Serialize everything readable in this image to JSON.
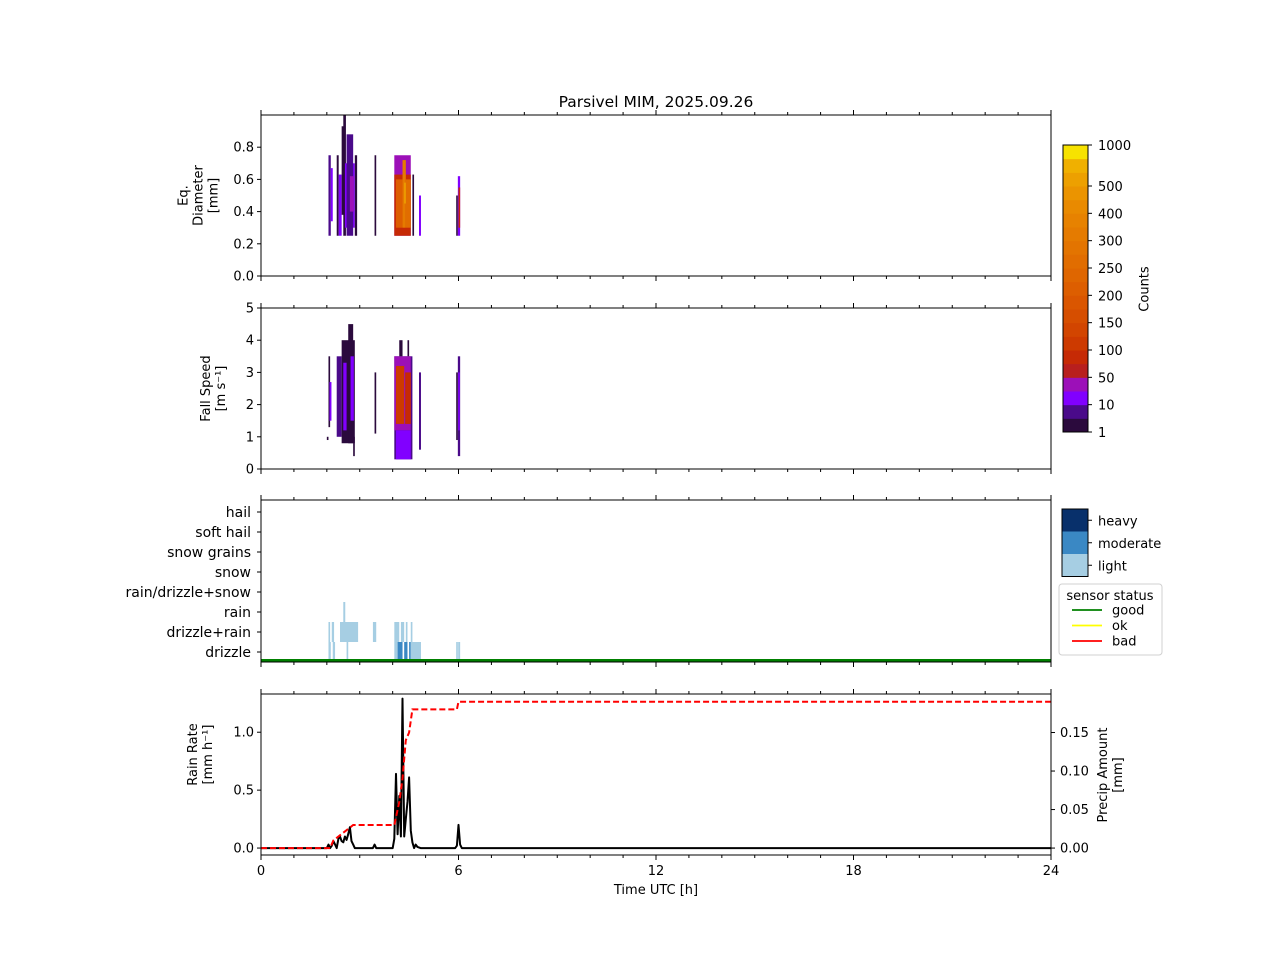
{
  "chart_data": [
    {
      "type": "heatmap",
      "title": "Parsivel MIM, 2025.09.26",
      "ylabel_lines": [
        "Eq.",
        "Diameter",
        "[mm]"
      ],
      "xlim": [
        0,
        24
      ],
      "ylim": [
        0,
        1.0
      ],
      "yticks": [
        "0.0",
        "0.2",
        "0.4",
        "0.6",
        "0.8"
      ],
      "ytick_values": [
        0,
        0.2,
        0.4,
        0.6,
        0.8
      ],
      "cells": [
        {
          "t0": 2.05,
          "t1": 2.12,
          "y0": 0.25,
          "y1": 0.75,
          "count": 5
        },
        {
          "t0": 2.12,
          "t1": 2.18,
          "y0": 0.34,
          "y1": 0.67,
          "count": 20
        },
        {
          "t0": 2.3,
          "t1": 2.36,
          "y0": 0.25,
          "y1": 0.75,
          "count": 3
        },
        {
          "t0": 2.36,
          "t1": 2.45,
          "y0": 0.25,
          "y1": 0.63,
          "count": 15
        },
        {
          "t0": 2.45,
          "t1": 2.55,
          "y0": 0.38,
          "y1": 0.93,
          "count": 3
        },
        {
          "t0": 2.5,
          "t1": 2.58,
          "y0": 0.25,
          "y1": 1.0,
          "count": 2
        },
        {
          "t0": 2.55,
          "t1": 2.85,
          "y0": 0.3,
          "y1": 0.7,
          "count": 20
        },
        {
          "t0": 2.6,
          "t1": 2.8,
          "y0": 0.25,
          "y1": 0.88,
          "count": 6
        },
        {
          "t0": 2.7,
          "t1": 2.82,
          "y0": 0.4,
          "y1": 0.62,
          "count": 40
        },
        {
          "t0": 2.85,
          "t1": 2.92,
          "y0": 0.25,
          "y1": 0.75,
          "count": 3
        },
        {
          "t0": 3.45,
          "t1": 3.5,
          "y0": 0.25,
          "y1": 0.75,
          "count": 3
        },
        {
          "t0": 4.05,
          "t1": 4.55,
          "y0": 0.25,
          "y1": 0.75,
          "count": 30
        },
        {
          "t0": 4.05,
          "t1": 4.55,
          "y0": 0.25,
          "y1": 0.63,
          "count": 80
        },
        {
          "t0": 4.1,
          "t1": 4.3,
          "y0": 0.3,
          "y1": 0.6,
          "count": 200
        },
        {
          "t0": 4.3,
          "t1": 4.4,
          "y0": 0.3,
          "y1": 0.72,
          "count": 300
        },
        {
          "t0": 4.4,
          "t1": 4.55,
          "y0": 0.3,
          "y1": 0.6,
          "count": 250
        },
        {
          "t0": 4.35,
          "t1": 4.4,
          "y0": 0.45,
          "y1": 0.58,
          "count": 600
        },
        {
          "t0": 4.6,
          "t1": 4.65,
          "y0": 0.25,
          "y1": 0.63,
          "count": 4
        },
        {
          "t0": 4.8,
          "t1": 4.86,
          "y0": 0.25,
          "y1": 0.5,
          "count": 20
        },
        {
          "t0": 5.93,
          "t1": 5.98,
          "y0": 0.25,
          "y1": 0.5,
          "count": 4
        },
        {
          "t0": 5.98,
          "t1": 6.05,
          "y0": 0.25,
          "y1": 0.62,
          "count": 20
        },
        {
          "t0": 6.0,
          "t1": 6.05,
          "y0": 0.3,
          "y1": 0.55,
          "count": 80
        }
      ]
    },
    {
      "type": "heatmap",
      "ylabel_lines": [
        "Fall Speed",
        "[m s⁻¹]"
      ],
      "xlim": [
        0,
        24
      ],
      "ylim": [
        0,
        5
      ],
      "yticks": [
        "0",
        "1",
        "2",
        "3",
        "4",
        "5"
      ],
      "ytick_values": [
        0,
        1,
        2,
        3,
        4,
        5
      ],
      "cells": [
        {
          "t0": 2.05,
          "t1": 2.1,
          "y0": 1.3,
          "y1": 3.5,
          "count": 3
        },
        {
          "t0": 2.08,
          "t1": 2.14,
          "y0": 1.5,
          "y1": 2.7,
          "count": 20
        },
        {
          "t0": 2.0,
          "t1": 2.05,
          "y0": 0.9,
          "y1": 1.0,
          "count": 3
        },
        {
          "t0": 2.3,
          "t1": 2.45,
          "y0": 1.0,
          "y1": 3.5,
          "count": 5
        },
        {
          "t0": 2.45,
          "t1": 2.85,
          "y0": 0.8,
          "y1": 4.0,
          "count": 4
        },
        {
          "t0": 2.5,
          "t1": 2.6,
          "y0": 1.2,
          "y1": 3.3,
          "count": 15
        },
        {
          "t0": 2.65,
          "t1": 2.8,
          "y0": 0.8,
          "y1": 4.5,
          "count": 3
        },
        {
          "t0": 2.72,
          "t1": 2.82,
          "y0": 1.5,
          "y1": 3.5,
          "count": 20
        },
        {
          "t0": 2.8,
          "t1": 2.85,
          "y0": 0.4,
          "y1": 1.0,
          "count": 3
        },
        {
          "t0": 3.45,
          "t1": 3.5,
          "y0": 1.1,
          "y1": 3.0,
          "count": 3
        },
        {
          "t0": 4.05,
          "t1": 4.6,
          "y0": 0.3,
          "y1": 3.5,
          "count": 8
        },
        {
          "t0": 4.05,
          "t1": 4.55,
          "y0": 1.2,
          "y1": 3.5,
          "count": 30
        },
        {
          "t0": 4.1,
          "t1": 4.35,
          "y0": 1.4,
          "y1": 3.2,
          "count": 100
        },
        {
          "t0": 4.38,
          "t1": 4.55,
          "y0": 1.4,
          "y1": 3.0,
          "count": 80
        },
        {
          "t0": 4.1,
          "t1": 4.55,
          "y0": 0.3,
          "y1": 1.2,
          "count": 15
        },
        {
          "t0": 4.2,
          "t1": 4.3,
          "y0": 3.5,
          "y1": 4.0,
          "count": 3
        },
        {
          "t0": 4.45,
          "t1": 4.5,
          "y0": 3.5,
          "y1": 4.0,
          "count": 3
        },
        {
          "t0": 4.8,
          "t1": 4.86,
          "y0": 0.6,
          "y1": 3.0,
          "count": 5
        },
        {
          "t0": 5.93,
          "t1": 5.98,
          "y0": 0.9,
          "y1": 3.0,
          "count": 3
        },
        {
          "t0": 5.98,
          "t1": 6.05,
          "y0": 0.4,
          "y1": 3.5,
          "count": 8
        },
        {
          "t0": 5.99,
          "t1": 6.04,
          "y0": 1.2,
          "y1": 3.0,
          "count": 20
        }
      ]
    },
    {
      "type": "heatmap",
      "ylim_categories": [
        "drizzle",
        "drizzle+rain",
        "rain",
        "rain/drizzle+snow",
        "snow",
        "snow grains",
        "soft hail",
        "hail"
      ],
      "xlim": [
        0,
        24
      ],
      "intensity_legend": [
        "heavy",
        "moderate",
        "light"
      ],
      "intensity_colors": {
        "light": "#a6cee3",
        "moderate": "#3a88c4",
        "heavy": "#08306b"
      },
      "bars": [
        {
          "t0": 2.05,
          "t1": 2.12,
          "category": "drizzle",
          "intensity": "light"
        },
        {
          "t0": 2.18,
          "t1": 2.25,
          "category": "drizzle",
          "intensity": "light"
        },
        {
          "t0": 2.6,
          "t1": 2.65,
          "category": "drizzle",
          "intensity": "light"
        },
        {
          "t0": 4.05,
          "t1": 4.15,
          "category": "drizzle",
          "intensity": "light"
        },
        {
          "t0": 4.15,
          "t1": 4.3,
          "category": "drizzle",
          "intensity": "moderate"
        },
        {
          "t0": 4.35,
          "t1": 4.45,
          "category": "drizzle",
          "intensity": "moderate"
        },
        {
          "t0": 4.5,
          "t1": 4.55,
          "category": "drizzle",
          "intensity": "moderate"
        },
        {
          "t0": 4.55,
          "t1": 4.8,
          "category": "drizzle",
          "intensity": "light"
        },
        {
          "t0": 4.8,
          "t1": 4.86,
          "category": "drizzle",
          "intensity": "light"
        },
        {
          "t0": 5.93,
          "t1": 5.98,
          "category": "drizzle",
          "intensity": "light"
        },
        {
          "t0": 5.99,
          "t1": 6.05,
          "category": "drizzle",
          "intensity": "light"
        },
        {
          "t0": 2.05,
          "t1": 2.1,
          "category": "drizzle+rain",
          "intensity": "light"
        },
        {
          "t0": 2.15,
          "t1": 2.22,
          "category": "drizzle+rain",
          "intensity": "light"
        },
        {
          "t0": 2.4,
          "t1": 2.95,
          "category": "drizzle+rain",
          "intensity": "light"
        },
        {
          "t0": 3.4,
          "t1": 3.5,
          "category": "drizzle+rain",
          "intensity": "light"
        },
        {
          "t0": 4.05,
          "t1": 4.2,
          "category": "drizzle+rain",
          "intensity": "light"
        },
        {
          "t0": 4.25,
          "t1": 4.35,
          "category": "drizzle+rain",
          "intensity": "light"
        },
        {
          "t0": 4.4,
          "t1": 4.45,
          "category": "drizzle+rain",
          "intensity": "light"
        },
        {
          "t0": 4.55,
          "t1": 4.6,
          "category": "drizzle+rain",
          "intensity": "light"
        },
        {
          "t0": 2.5,
          "t1": 2.56,
          "category": "rain",
          "intensity": "light"
        }
      ],
      "sensor_status_legend": {
        "title": "sensor status",
        "entries": [
          {
            "label": "good",
            "color": "#008000"
          },
          {
            "label": "ok",
            "color": "#ffff00"
          },
          {
            "label": "bad",
            "color": "#ff0000"
          }
        ]
      },
      "sensor_status_series": [
        {
          "t0": 0,
          "t1": 24,
          "status": "good"
        }
      ]
    },
    {
      "type": "line",
      "xlabel": "Time UTC [h]",
      "xlim": [
        0,
        24
      ],
      "xticks": [
        "0",
        "6",
        "12",
        "18",
        "24"
      ],
      "xtick_values": [
        0,
        6,
        12,
        18,
        24
      ],
      "ylabel_lines": [
        "Rain Rate",
        "[mm h⁻¹]"
      ],
      "ylim": [
        -0.06,
        1.33
      ],
      "yticks": [
        "0.0",
        "0.5",
        "1.0"
      ],
      "ytick_values": [
        0,
        0.5,
        1.0
      ],
      "y2label_lines": [
        "Precip Amount",
        "[mm]"
      ],
      "y2lim": [
        -0.009,
        0.2
      ],
      "y2ticks": [
        "0.00",
        "0.05",
        "0.10",
        "0.15"
      ],
      "y2tick_values": [
        0,
        0.05,
        0.1,
        0.15
      ],
      "series": [
        {
          "name": "Rain Rate",
          "axis": "left",
          "color": "#000000",
          "style": "solid",
          "x": [
            0,
            2.0,
            2.05,
            2.1,
            2.15,
            2.2,
            2.25,
            2.3,
            2.35,
            2.4,
            2.45,
            2.5,
            2.55,
            2.6,
            2.65,
            2.7,
            2.75,
            2.8,
            2.85,
            2.9,
            3.0,
            3.4,
            3.45,
            3.5,
            4.0,
            4.05,
            4.1,
            4.15,
            4.2,
            4.25,
            4.3,
            4.35,
            4.4,
            4.45,
            4.5,
            4.55,
            4.6,
            4.65,
            4.7,
            4.75,
            4.85,
            4.9,
            5.9,
            5.95,
            6.0,
            6.05,
            6.1,
            24
          ],
          "y": [
            0,
            0,
            0.03,
            0.0,
            0.02,
            0.06,
            0.03,
            0.0,
            0.08,
            0.1,
            0.06,
            0.05,
            0.1,
            0.07,
            0.12,
            0.18,
            0.06,
            0.03,
            0.0,
            0.0,
            0.0,
            0.0,
            0.03,
            0.0,
            0.0,
            0.08,
            0.64,
            0.12,
            0.45,
            0.1,
            1.29,
            0.1,
            0.25,
            0.4,
            0.61,
            0.15,
            0.05,
            0.0,
            0.03,
            0.01,
            0.0,
            0.0,
            0.0,
            0.02,
            0.2,
            0.03,
            0.0,
            0
          ]
        },
        {
          "name": "Precip Amount",
          "axis": "right",
          "color": "#ff0000",
          "style": "dashed",
          "x": [
            0,
            2.1,
            2.2,
            2.5,
            2.8,
            4.05,
            4.2,
            4.3,
            4.4,
            4.5,
            4.6,
            5.95,
            6.0,
            24
          ],
          "y": [
            0,
            0,
            0.01,
            0.02,
            0.03,
            0.03,
            0.06,
            0.09,
            0.14,
            0.15,
            0.18,
            0.18,
            0.19,
            0.19
          ]
        }
      ]
    }
  ],
  "colorbar": {
    "label": "Counts",
    "ticks": [
      "1",
      "10",
      "50",
      "100",
      "150",
      "200",
      "250",
      "300",
      "400",
      "500",
      "1000"
    ],
    "levels": [
      1,
      5,
      10,
      30,
      50,
      75,
      100,
      125,
      150,
      175,
      200,
      225,
      250,
      275,
      300,
      350,
      400,
      450,
      500,
      750,
      1000
    ],
    "colors": [
      "#2b0a3d",
      "#4a0a8a",
      "#8100ff",
      "#9c10b8",
      "#b81f1e",
      "#c62a05",
      "#cd3a00",
      "#d24500",
      "#d64e00",
      "#da5600",
      "#dd5e00",
      "#df6600",
      "#e16d00",
      "#e37400",
      "#e57b00",
      "#e78200",
      "#e98a00",
      "#eb9400",
      "#eda000",
      "#f0b000",
      "#f7e200"
    ]
  }
}
